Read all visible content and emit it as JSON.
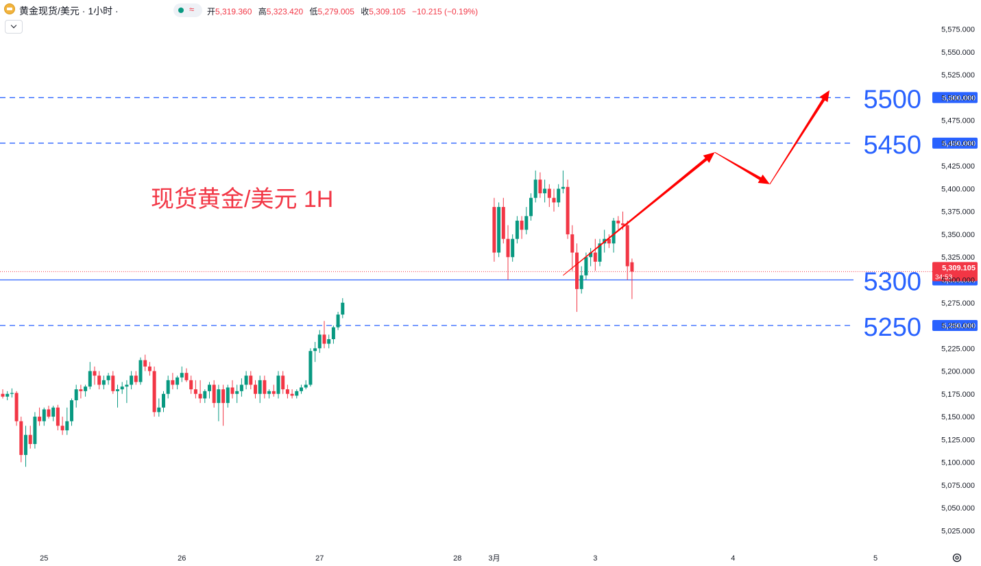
{
  "header": {
    "symbol": "黄金现货/美元 · 1小时 ·",
    "ohlc": [
      {
        "label": "开",
        "value": "5,319.360"
      },
      {
        "label": "高",
        "value": "5,323.420"
      },
      {
        "label": "低",
        "value": "5,279.005"
      },
      {
        "label": "收",
        "value": "5,309.105"
      }
    ],
    "change": "−10.215 (−0.19%)"
  },
  "colors": {
    "up": "#089981",
    "down": "#f23645",
    "level_line": "#2962ff",
    "label_blue": "#2962ff",
    "annotation": "#f23645",
    "arrow": "#ff0000"
  },
  "chart_data": {
    "type": "candlestick",
    "title": "现货黄金/美元 1H",
    "ylim": [
      5012.5,
      5587.5
    ],
    "y_ticks": [
      "5,575.000",
      "5,550.000",
      "5,525.000",
      "5,500.000",
      "5,475.000",
      "5,450.000",
      "5,425.000",
      "5,400.000",
      "5,375.000",
      "5,350.000",
      "5,325.000",
      "5,300.000",
      "5,275.000",
      "5,250.000",
      "5,225.000",
      "5,200.000",
      "5,175.000",
      "5,150.000",
      "5,125.000",
      "5,100.000",
      "5,075.000",
      "5,050.000",
      "5,025.000"
    ],
    "x_ticks": [
      {
        "label": "25",
        "index": 9
      },
      {
        "label": "26",
        "index": 39
      },
      {
        "label": "27",
        "index": 69
      },
      {
        "label": "28",
        "index": 99
      },
      {
        "label": "3月",
        "index": 107
      },
      {
        "label": "3",
        "index": 129
      },
      {
        "label": "4",
        "index": 159
      },
      {
        "label": "5",
        "index": 190
      }
    ],
    "x_count": 196,
    "candles": [
      [
        5175,
        5180,
        5170,
        5172
      ],
      [
        5172,
        5178,
        5168,
        5175
      ],
      [
        5175,
        5181,
        5171,
        5176
      ],
      [
        5176,
        5178,
        5140,
        5145
      ],
      [
        5145,
        5150,
        5100,
        5108
      ],
      [
        5108,
        5140,
        5095,
        5130
      ],
      [
        5130,
        5140,
        5115,
        5120
      ],
      [
        5120,
        5155,
        5115,
        5150
      ],
      [
        5150,
        5160,
        5140,
        5145
      ],
      [
        5145,
        5160,
        5140,
        5158
      ],
      [
        5158,
        5162,
        5148,
        5150
      ],
      [
        5150,
        5162,
        5145,
        5160
      ],
      [
        5160,
        5163,
        5135,
        5140
      ],
      [
        5140,
        5150,
        5130,
        5135
      ],
      [
        5135,
        5160,
        5130,
        5145
      ],
      [
        5145,
        5170,
        5140,
        5168
      ],
      [
        5168,
        5185,
        5160,
        5180
      ],
      [
        5180,
        5185,
        5170,
        5178
      ],
      [
        5178,
        5185,
        5172,
        5183
      ],
      [
        5183,
        5210,
        5180,
        5200
      ],
      [
        5200,
        5205,
        5185,
        5195
      ],
      [
        5195,
        5200,
        5180,
        5185
      ],
      [
        5185,
        5195,
        5180,
        5190
      ],
      [
        5190,
        5198,
        5185,
        5195
      ],
      [
        5195,
        5200,
        5175,
        5178
      ],
      [
        5178,
        5185,
        5160,
        5180
      ],
      [
        5180,
        5188,
        5175,
        5183
      ],
      [
        5183,
        5190,
        5165,
        5185
      ],
      [
        5185,
        5200,
        5180,
        5195
      ],
      [
        5195,
        5200,
        5185,
        5188
      ],
      [
        5188,
        5215,
        5185,
        5212
      ],
      [
        5212,
        5218,
        5200,
        5205
      ],
      [
        5205,
        5210,
        5195,
        5200
      ],
      [
        5200,
        5205,
        5150,
        5155
      ],
      [
        5155,
        5170,
        5150,
        5160
      ],
      [
        5160,
        5178,
        5155,
        5175
      ],
      [
        5175,
        5195,
        5170,
        5190
      ],
      [
        5190,
        5198,
        5180,
        5185
      ],
      [
        5185,
        5195,
        5180,
        5193
      ],
      [
        5193,
        5205,
        5188,
        5198
      ],
      [
        5198,
        5203,
        5188,
        5190
      ],
      [
        5190,
        5195,
        5175,
        5180
      ],
      [
        5180,
        5190,
        5170,
        5175
      ],
      [
        5175,
        5190,
        5165,
        5170
      ],
      [
        5170,
        5180,
        5165,
        5178
      ],
      [
        5178,
        5188,
        5170,
        5185
      ],
      [
        5185,
        5190,
        5160,
        5165
      ],
      [
        5165,
        5185,
        5145,
        5180
      ],
      [
        5180,
        5185,
        5140,
        5165
      ],
      [
        5165,
        5185,
        5160,
        5182
      ],
      [
        5182,
        5190,
        5170,
        5175
      ],
      [
        5175,
        5185,
        5165,
        5178
      ],
      [
        5178,
        5192,
        5172,
        5185
      ],
      [
        5185,
        5200,
        5180,
        5195
      ],
      [
        5195,
        5200,
        5180,
        5185
      ],
      [
        5185,
        5190,
        5170,
        5175
      ],
      [
        5175,
        5195,
        5165,
        5190
      ],
      [
        5190,
        5195,
        5170,
        5175
      ],
      [
        5175,
        5180,
        5170,
        5178
      ],
      [
        5178,
        5185,
        5172,
        5175
      ],
      [
        5175,
        5200,
        5170,
        5195
      ],
      [
        5195,
        5200,
        5175,
        5180
      ],
      [
        5180,
        5185,
        5170,
        5175
      ],
      [
        5175,
        5180,
        5170,
        5173
      ],
      [
        5173,
        5180,
        5170,
        5178
      ],
      [
        5178,
        5185,
        5175,
        5182
      ],
      [
        5182,
        5190,
        5180,
        5185
      ],
      [
        5185,
        5225,
        5183,
        5222
      ],
      [
        5222,
        5232,
        5210,
        5225
      ],
      [
        5225,
        5245,
        5220,
        5240
      ],
      [
        5240,
        5255,
        5225,
        5230
      ],
      [
        5230,
        5240,
        5225,
        5235
      ],
      [
        5235,
        5250,
        5230,
        5248
      ],
      [
        5248,
        5265,
        5245,
        5262
      ],
      [
        5262,
        5280,
        5258,
        5275
      ],
      [
        5380,
        5390,
        5320,
        5330
      ],
      [
        5330,
        5385,
        5325,
        5380
      ],
      [
        5380,
        5390,
        5340,
        5345
      ],
      [
        5345,
        5360,
        5300,
        5325
      ],
      [
        5325,
        5350,
        5320,
        5345
      ],
      [
        5345,
        5370,
        5340,
        5365
      ],
      [
        5365,
        5370,
        5345,
        5355
      ],
      [
        5355,
        5380,
        5350,
        5370
      ],
      [
        5370,
        5395,
        5365,
        5390
      ],
      [
        5390,
        5420,
        5385,
        5410
      ],
      [
        5410,
        5418,
        5390,
        5395
      ],
      [
        5395,
        5410,
        5385,
        5400
      ],
      [
        5400,
        5405,
        5380,
        5390
      ],
      [
        5390,
        5400,
        5375,
        5385
      ],
      [
        5385,
        5405,
        5380,
        5400
      ],
      [
        5400,
        5420,
        5395,
        5402
      ],
      [
        5402,
        5410,
        5345,
        5350
      ],
      [
        5350,
        5360,
        5310,
        5330
      ],
      [
        5330,
        5340,
        5265,
        5290
      ],
      [
        5290,
        5315,
        5285,
        5305
      ],
      [
        5305,
        5330,
        5300,
        5325
      ],
      [
        5325,
        5335,
        5315,
        5330
      ],
      [
        5330,
        5345,
        5310,
        5320
      ],
      [
        5320,
        5345,
        5315,
        5340
      ],
      [
        5340,
        5355,
        5330,
        5345
      ],
      [
        5345,
        5350,
        5335,
        5340
      ],
      [
        5340,
        5368,
        5330,
        5365
      ],
      [
        5365,
        5370,
        5355,
        5362
      ],
      [
        5362,
        5375,
        5355,
        5360
      ],
      [
        5360,
        5365,
        5300,
        5315
      ],
      [
        5319.36,
        5323.42,
        5279.005,
        5309.105
      ]
    ],
    "candle_start": {
      "first": 0,
      "gap_after": 74,
      "resume": 81
    },
    "price_levels": [
      {
        "value": 5500,
        "label": "5500",
        "price_label": "5,500.000",
        "style": "dashed"
      },
      {
        "value": 5450,
        "label": "5450",
        "price_label": "5,450.000",
        "style": "dashed"
      },
      {
        "value": 5300,
        "label": "5300",
        "price_label": "5,300.000",
        "style": "solid"
      },
      {
        "value": 5250,
        "label": "5250",
        "price_label": "5,250.000",
        "style": "dashed"
      }
    ],
    "last_price": {
      "value": 5309.105,
      "label": "5,309.105",
      "countdown": "34:53"
    },
    "projection": [
      {
        "index": 122,
        "value": 5305
      },
      {
        "index": 155,
        "value": 5440
      },
      {
        "index": 167,
        "value": 5405
      },
      {
        "index": 180,
        "value": 5508
      }
    ]
  }
}
